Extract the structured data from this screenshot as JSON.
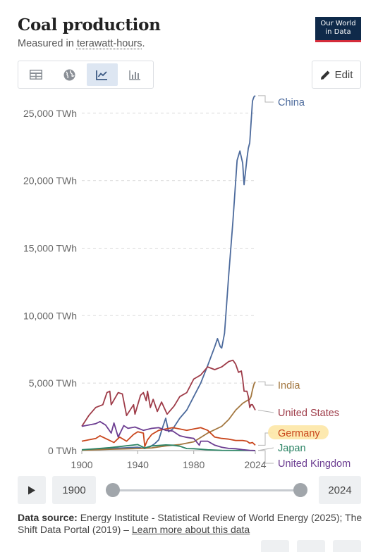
{
  "header": {
    "title": "Coal production",
    "subtitle_prefix": "Measured in ",
    "subtitle_unit": "terawatt-hours",
    "subtitle_suffix": ".",
    "logo_line1": "Our World",
    "logo_line2": "in Data"
  },
  "toolbar": {
    "tools": [
      "table-icon",
      "globe-icon",
      "line-chart-icon",
      "bar-chart-icon"
    ],
    "active_tool": "line-chart-icon",
    "edit_label": "Edit"
  },
  "timeline": {
    "start_year": "1900",
    "end_year": "2024",
    "start_fraction": 0,
    "end_fraction": 1
  },
  "footer": {
    "source_label": "Data source:",
    "source_text": "Energy Institute - Statistical Review of World Energy (2025); The Shift Data Portal (2019) – ",
    "source_link": "Learn more about this data"
  },
  "chart_data": {
    "type": "line",
    "xlim": [
      1900,
      2024
    ],
    "ylim": [
      0,
      26500
    ],
    "x_ticks": [
      1900,
      1940,
      1980,
      2024
    ],
    "y_ticks": [
      {
        "value": 0,
        "label": "0 TWh"
      },
      {
        "value": 5000,
        "label": "5,000 TWh"
      },
      {
        "value": 10000,
        "label": "10,000 TWh"
      },
      {
        "value": 15000,
        "label": "15,000 TWh"
      },
      {
        "value": 20000,
        "label": "20,000 TWh"
      },
      {
        "value": 25000,
        "label": "25,000 TWh"
      }
    ],
    "grid": "horizontal dashed",
    "legend": "line-end labels (right)",
    "series": [
      {
        "name": "China",
        "color": "#4c6a9c",
        "highlight": false,
        "points": [
          [
            1900,
            50
          ],
          [
            1915,
            150
          ],
          [
            1930,
            200
          ],
          [
            1940,
            250
          ],
          [
            1945,
            150
          ],
          [
            1949,
            300
          ],
          [
            1952,
            500
          ],
          [
            1955,
            800
          ],
          [
            1958,
            1800
          ],
          [
            1960,
            2400
          ],
          [
            1962,
            1400
          ],
          [
            1965,
            1600
          ],
          [
            1970,
            2400
          ],
          [
            1975,
            3000
          ],
          [
            1980,
            4000
          ],
          [
            1985,
            5000
          ],
          [
            1990,
            6300
          ],
          [
            1995,
            7700
          ],
          [
            1997,
            8300
          ],
          [
            1999,
            7700
          ],
          [
            2000,
            7600
          ],
          [
            2002,
            8700
          ],
          [
            2005,
            13000
          ],
          [
            2008,
            17000
          ],
          [
            2011,
            21500
          ],
          [
            2013,
            22200
          ],
          [
            2015,
            21300
          ],
          [
            2016,
            19700
          ],
          [
            2018,
            21600
          ],
          [
            2019,
            22400
          ],
          [
            2020,
            22800
          ],
          [
            2021,
            24300
          ],
          [
            2022,
            25900
          ],
          [
            2023,
            26200
          ],
          [
            2024,
            26300
          ]
        ]
      },
      {
        "name": "India",
        "color": "#a2763e",
        "highlight": false,
        "points": [
          [
            1900,
            30
          ],
          [
            1920,
            100
          ],
          [
            1940,
            150
          ],
          [
            1950,
            200
          ],
          [
            1960,
            350
          ],
          [
            1970,
            450
          ],
          [
            1980,
            650
          ],
          [
            1990,
            1300
          ],
          [
            2000,
            1800
          ],
          [
            2005,
            2300
          ],
          [
            2010,
            3000
          ],
          [
            2015,
            3500
          ],
          [
            2018,
            3700
          ],
          [
            2020,
            3800
          ],
          [
            2021,
            4000
          ],
          [
            2022,
            4500
          ],
          [
            2023,
            4900
          ],
          [
            2024,
            5100
          ]
        ]
      },
      {
        "name": "United States",
        "color": "#9e3b48",
        "highlight": false,
        "points": [
          [
            1900,
            1800
          ],
          [
            1905,
            2600
          ],
          [
            1910,
            3200
          ],
          [
            1915,
            3400
          ],
          [
            1918,
            4300
          ],
          [
            1920,
            4400
          ],
          [
            1921,
            3400
          ],
          [
            1926,
            4300
          ],
          [
            1929,
            4200
          ],
          [
            1932,
            2600
          ],
          [
            1937,
            3400
          ],
          [
            1938,
            2700
          ],
          [
            1942,
            4100
          ],
          [
            1944,
            4300
          ],
          [
            1946,
            3700
          ],
          [
            1947,
            4400
          ],
          [
            1949,
            3200
          ],
          [
            1951,
            3800
          ],
          [
            1954,
            2900
          ],
          [
            1957,
            3600
          ],
          [
            1961,
            2700
          ],
          [
            1966,
            3300
          ],
          [
            1970,
            4000
          ],
          [
            1975,
            4300
          ],
          [
            1980,
            5300
          ],
          [
            1985,
            5600
          ],
          [
            1990,
            6200
          ],
          [
            1995,
            6000
          ],
          [
            2000,
            6200
          ],
          [
            2005,
            6600
          ],
          [
            2008,
            6700
          ],
          [
            2010,
            6400
          ],
          [
            2012,
            5800
          ],
          [
            2014,
            5900
          ],
          [
            2015,
            5300
          ],
          [
            2016,
            4400
          ],
          [
            2018,
            4400
          ],
          [
            2019,
            4000
          ],
          [
            2020,
            3200
          ],
          [
            2021,
            3400
          ],
          [
            2022,
            3400
          ],
          [
            2023,
            3200
          ],
          [
            2024,
            3000
          ]
        ]
      },
      {
        "name": "Germany",
        "color": "#c9461c",
        "highlight": true,
        "points": [
          [
            1900,
            700
          ],
          [
            1910,
            900
          ],
          [
            1913,
            1100
          ],
          [
            1919,
            800
          ],
          [
            1923,
            600
          ],
          [
            1927,
            1000
          ],
          [
            1932,
            700
          ],
          [
            1937,
            1200
          ],
          [
            1940,
            1400
          ],
          [
            1944,
            1300
          ],
          [
            1945,
            300
          ],
          [
            1947,
            800
          ],
          [
            1950,
            1200
          ],
          [
            1955,
            1500
          ],
          [
            1960,
            1600
          ],
          [
            1965,
            1700
          ],
          [
            1970,
            1600
          ],
          [
            1975,
            1500
          ],
          [
            1980,
            1600
          ],
          [
            1985,
            1700
          ],
          [
            1990,
            1500
          ],
          [
            1995,
            1000
          ],
          [
            2000,
            900
          ],
          [
            2005,
            850
          ],
          [
            2010,
            750
          ],
          [
            2015,
            750
          ],
          [
            2018,
            700
          ],
          [
            2020,
            550
          ],
          [
            2022,
            600
          ],
          [
            2024,
            400
          ]
        ]
      },
      {
        "name": "Japan",
        "color": "#2c8465",
        "highlight": false,
        "points": [
          [
            1900,
            60
          ],
          [
            1920,
            220
          ],
          [
            1940,
            450
          ],
          [
            1945,
            200
          ],
          [
            1950,
            350
          ],
          [
            1955,
            380
          ],
          [
            1960,
            420
          ],
          [
            1965,
            400
          ],
          [
            1970,
            330
          ],
          [
            1975,
            150
          ],
          [
            1980,
            140
          ],
          [
            1990,
            60
          ],
          [
            2000,
            20
          ],
          [
            2024,
            5
          ]
        ]
      },
      {
        "name": "United Kingdom",
        "color": "#6c3d91",
        "highlight": false,
        "points": [
          [
            1900,
            1800
          ],
          [
            1905,
            1900
          ],
          [
            1910,
            2000
          ],
          [
            1913,
            2150
          ],
          [
            1917,
            1900
          ],
          [
            1921,
            1300
          ],
          [
            1923,
            2050
          ],
          [
            1926,
            1000
          ],
          [
            1930,
            1850
          ],
          [
            1933,
            1650
          ],
          [
            1938,
            1750
          ],
          [
            1944,
            1500
          ],
          [
            1950,
            1650
          ],
          [
            1955,
            1700
          ],
          [
            1960,
            1500
          ],
          [
            1965,
            1450
          ],
          [
            1970,
            1100
          ],
          [
            1975,
            980
          ],
          [
            1980,
            900
          ],
          [
            1984,
            400
          ],
          [
            1985,
            700
          ],
          [
            1990,
            700
          ],
          [
            1995,
            400
          ],
          [
            2000,
            250
          ],
          [
            2005,
            160
          ],
          [
            2010,
            140
          ],
          [
            2015,
            70
          ],
          [
            2020,
            20
          ],
          [
            2024,
            5
          ]
        ]
      }
    ]
  }
}
